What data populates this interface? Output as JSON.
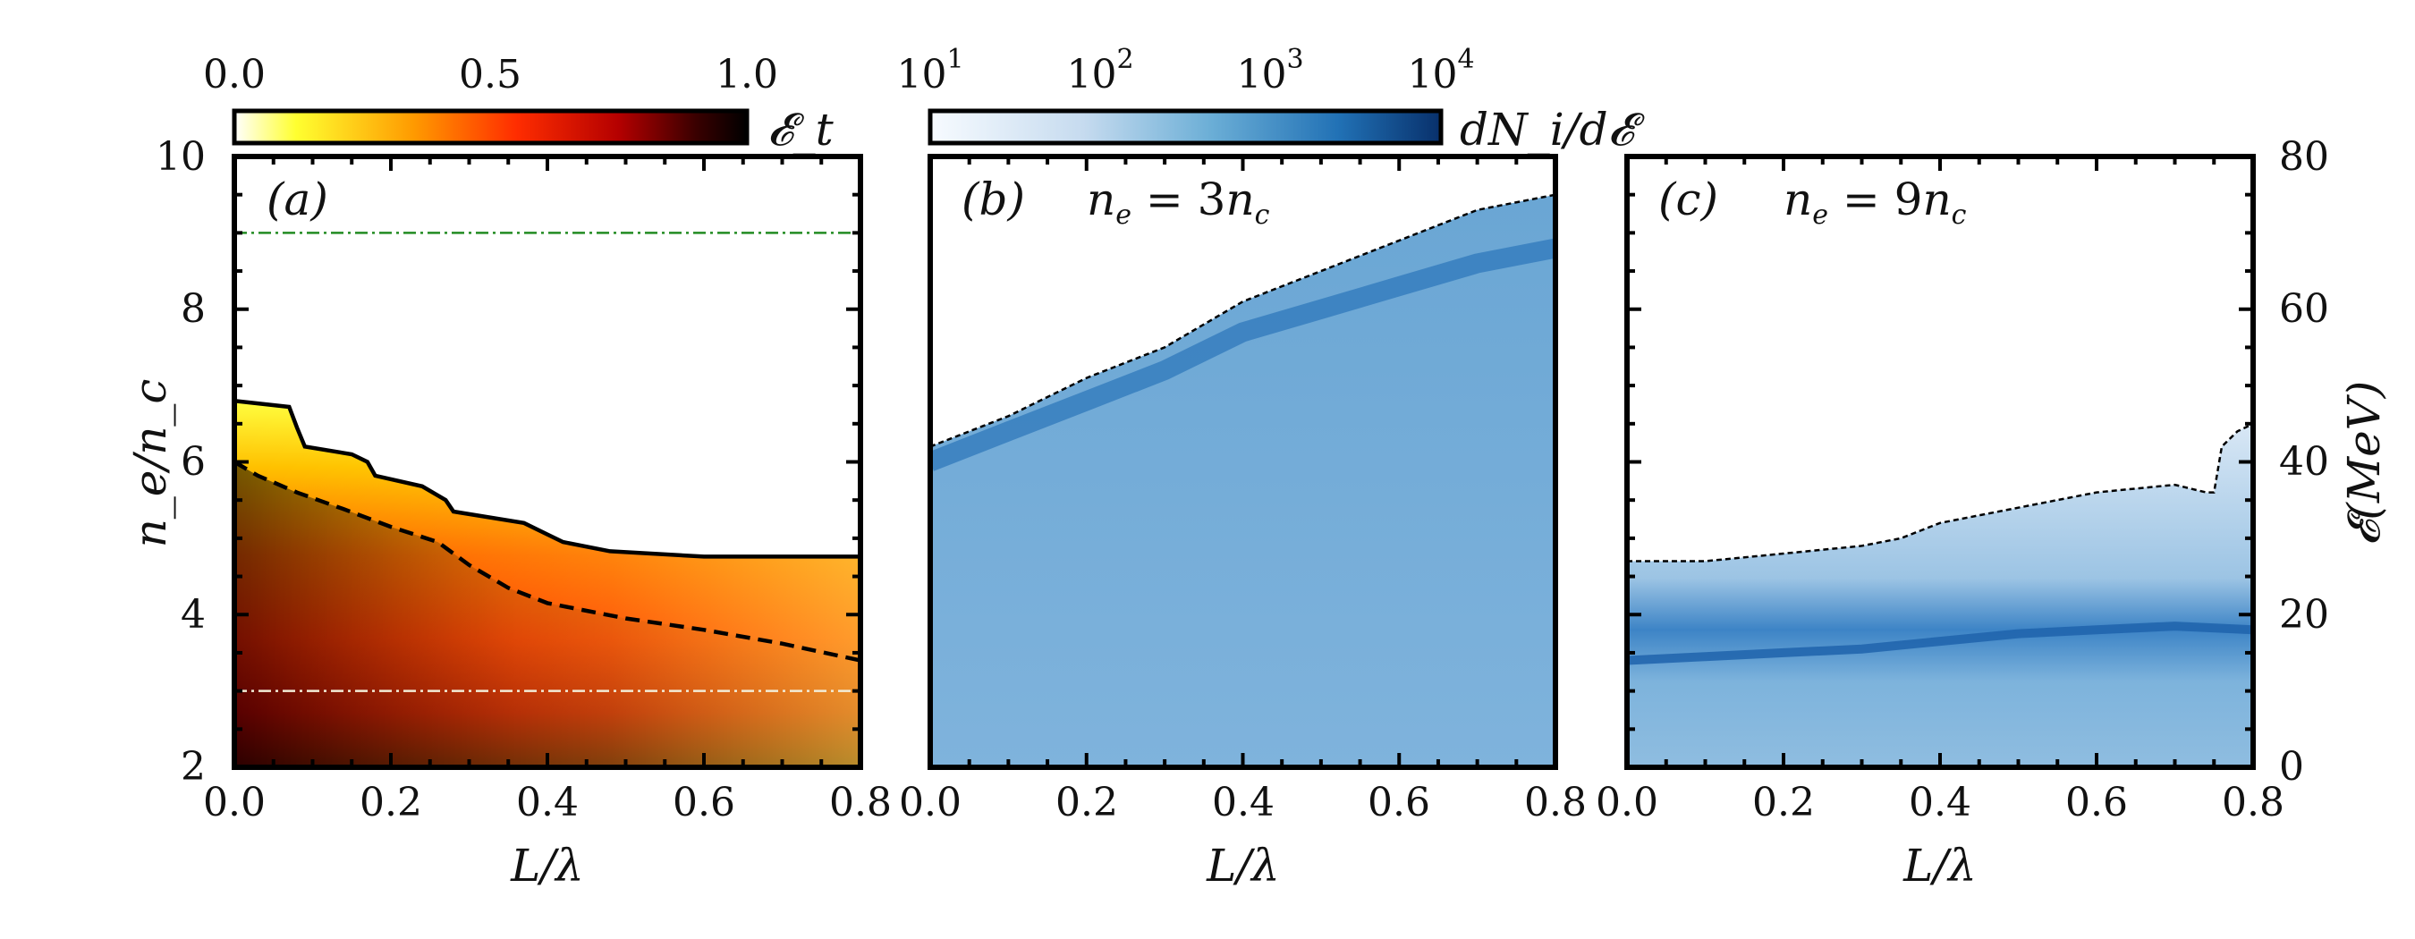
{
  "chart_data": [
    {
      "panel": "a",
      "type": "heatmap",
      "annotation": "(a)",
      "xlabel": "L/λ",
      "ylabel": "n_e/n_c",
      "xlim": [
        0.0,
        0.8
      ],
      "ylim": [
        2,
        10
      ],
      "xticks": [
        "0.0",
        "0.2",
        "0.4",
        "0.6",
        "0.8"
      ],
      "yticks": [
        "2",
        "4",
        "6",
        "8",
        "10"
      ],
      "colorbar": {
        "label": "𝓔_t",
        "ticks": [
          "0.0",
          "0.5",
          "1.0"
        ],
        "range": [
          0.0,
          1.0
        ],
        "colormap": "hot_r",
        "colors": [
          "#ffffff",
          "#ffff30",
          "#ff9a00",
          "#ff2d00",
          "#b40000",
          "#3a0000",
          "#000000"
        ]
      },
      "contour_solid": {
        "x": [
          0.0,
          0.07,
          0.08,
          0.09,
          0.15,
          0.17,
          0.18,
          0.24,
          0.27,
          0.28,
          0.37,
          0.4,
          0.42,
          0.48,
          0.6,
          0.8
        ],
        "y": [
          6.8,
          6.72,
          6.45,
          6.2,
          6.1,
          6.0,
          5.82,
          5.68,
          5.5,
          5.35,
          5.2,
          5.05,
          4.95,
          4.83,
          4.76,
          4.76
        ]
      },
      "contour_dashed": {
        "x": [
          0.0,
          0.03,
          0.08,
          0.14,
          0.2,
          0.26,
          0.3,
          0.35,
          0.4,
          0.5,
          0.6,
          0.7,
          0.8
        ],
        "y": [
          6.0,
          5.82,
          5.6,
          5.38,
          5.15,
          4.95,
          4.65,
          4.35,
          4.15,
          3.95,
          3.8,
          3.62,
          3.4
        ]
      },
      "hlines": [
        {
          "y": 9,
          "color": "#228b22",
          "style": "dashdot"
        },
        {
          "y": 3,
          "color": "#f2ecd6",
          "style": "dashdot"
        }
      ]
    },
    {
      "panel": "b",
      "type": "heatmap",
      "annotation": "(b)",
      "label_lhs": "n",
      "label_lhs_sub": "e",
      "label_eq": " = 3",
      "label_rhs": "n",
      "label_rhs_sub": "c",
      "xlabel": "L/λ",
      "xlim": [
        0.0,
        0.8
      ],
      "ylim": [
        0,
        80
      ],
      "xticks": [
        "0.0",
        "0.2",
        "0.4",
        "0.6",
        "0.8"
      ],
      "cutoff_energy_MeV": {
        "x": [
          0.0,
          0.1,
          0.2,
          0.3,
          0.4,
          0.5,
          0.6,
          0.7,
          0.8
        ],
        "y": [
          42,
          46,
          51,
          55,
          61,
          65,
          69,
          73,
          75
        ]
      },
      "band_energy_MeV": {
        "x": [
          0.0,
          0.1,
          0.2,
          0.3,
          0.4,
          0.5,
          0.6,
          0.7,
          0.8
        ],
        "y": [
          40,
          44,
          48,
          52,
          57,
          60,
          63,
          66,
          68
        ]
      },
      "colorbar": {
        "label": "dN_i/d𝓔",
        "scale": "log",
        "range": [
          10,
          10000
        ],
        "ticks": [
          {
            "base": "10",
            "exp": "1"
          },
          {
            "base": "10",
            "exp": "2"
          },
          {
            "base": "10",
            "exp": "3"
          },
          {
            "base": "10",
            "exp": "4"
          }
        ],
        "colormap": "Blues",
        "colors": [
          "#f7fbff",
          "#c6dbef",
          "#6baed6",
          "#2171b5",
          "#08306b"
        ]
      }
    },
    {
      "panel": "c",
      "type": "heatmap",
      "annotation": "(c)",
      "label_lhs": "n",
      "label_lhs_sub": "e",
      "label_eq": " = 9",
      "label_rhs": "n",
      "label_rhs_sub": "c",
      "xlabel": "L/λ",
      "ylabel_right": "𝓔(MeV)",
      "xlim": [
        0.0,
        0.8
      ],
      "ylim": [
        0,
        80
      ],
      "xticks": [
        "0.0",
        "0.2",
        "0.4",
        "0.6",
        "0.8"
      ],
      "yticks_right": [
        "0",
        "20",
        "40",
        "60",
        "80"
      ],
      "cutoff_energy_MeV": {
        "x": [
          0.0,
          0.1,
          0.2,
          0.3,
          0.35,
          0.4,
          0.5,
          0.6,
          0.7,
          0.74,
          0.75,
          0.76,
          0.78,
          0.8
        ],
        "y": [
          27,
          27,
          28,
          29,
          30,
          32,
          34,
          36,
          37,
          36,
          36,
          42,
          44,
          45
        ]
      },
      "band_energy_MeV": {
        "x": [
          0.0,
          0.1,
          0.2,
          0.3,
          0.4,
          0.5,
          0.6,
          0.7,
          0.8
        ],
        "y": [
          14,
          14.5,
          15,
          15.5,
          16.5,
          17.5,
          18,
          18.5,
          18
        ]
      }
    }
  ]
}
